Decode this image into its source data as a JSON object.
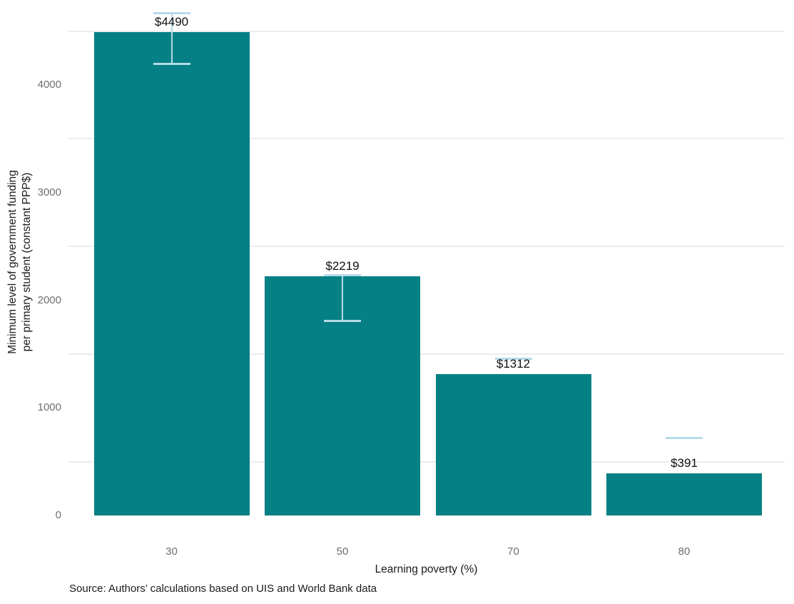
{
  "chart_data": {
    "type": "bar",
    "title": "",
    "xlabel": "Learning poverty (%)",
    "ylabel_lines": [
      "Minimum level of government funding",
      "per primary student (constant PPP$)"
    ],
    "ylabel": "Minimum level of government funding per primary student (constant PPP$)",
    "source_note": "Source: Authors’ calculations based on UIS and World Bank data",
    "categories": [
      "30",
      "50",
      "70",
      "80"
    ],
    "values": [
      4490,
      2219,
      1312,
      391
    ],
    "bar_labels": [
      "$4490",
      "$2219",
      "$1312",
      "$391"
    ],
    "error_bars": [
      {
        "upper": 4670,
        "lower": 4200
      },
      {
        "upper": 2235,
        "lower": 1810
      },
      {
        "upper": 1460,
        "lower": null
      },
      {
        "upper": 720,
        "lower": null
      }
    ],
    "y_ticks": [
      0,
      1000,
      2000,
      3000,
      4000
    ],
    "minor_gridlines": [
      500,
      1500,
      2500,
      3500,
      4500
    ],
    "ylim": [
      0,
      4500
    ],
    "grid": "horizontal lines every 500, no vertical grid",
    "legend": "none",
    "colors": {
      "bar": "#058084",
      "error_bar": "#b5dbe9",
      "gridline": "#ececec",
      "tick_text": "#6e6e6e",
      "text": "#1a1a1a"
    }
  }
}
